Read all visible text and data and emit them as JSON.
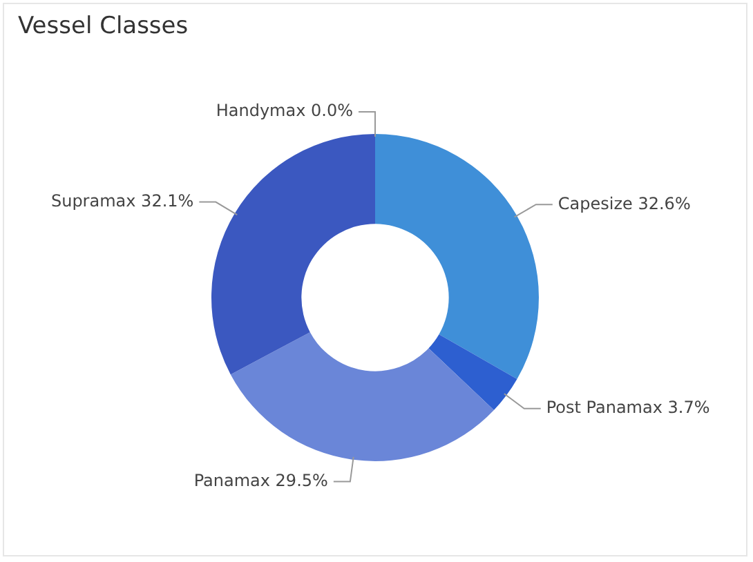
{
  "chart_data": {
    "type": "donut",
    "title": "Vessel Classes",
    "categories": [
      "Capesize",
      "Post Panamax",
      "Panamax",
      "Supramax",
      "Handymax"
    ],
    "values": [
      32.6,
      3.7,
      29.5,
      32.1,
      0.0
    ],
    "value_labels": [
      "32.6%",
      "3.7%",
      "29.5%",
      "32.1%",
      "0.0%"
    ],
    "colors": [
      "#3f8fd8",
      "#2d5fd0",
      "#6a86d8",
      "#3b58c0",
      "#1b2fb0"
    ],
    "legend": false
  }
}
